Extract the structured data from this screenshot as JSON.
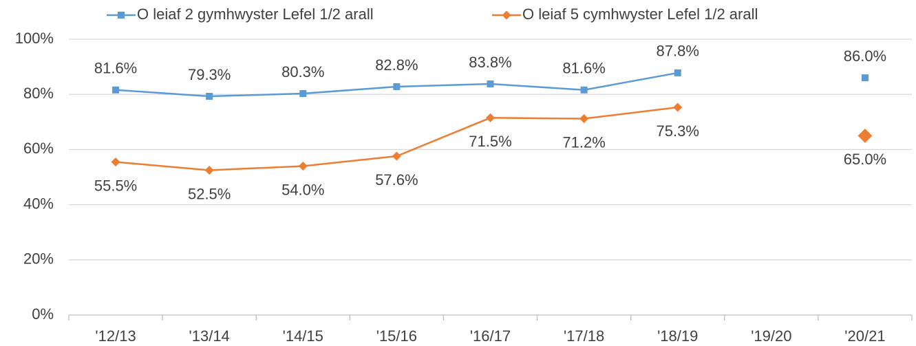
{
  "chart_data": {
    "type": "line",
    "categories": [
      "'12/13",
      "'13/14",
      "'14/15",
      "'15/16",
      "'16/17",
      "'17/18",
      "'18/19",
      "'19/20",
      "'20/21"
    ],
    "series": [
      {
        "name": "O leiaf 2 gymhwyster Lefel 1/2 arall",
        "color": "#5b9bd5",
        "marker": "square",
        "values": [
          81.6,
          79.3,
          80.3,
          82.8,
          83.8,
          81.6,
          87.8,
          null,
          86.0
        ],
        "value_labels": [
          "81.6%",
          "79.3%",
          "80.3%",
          "82.8%",
          "83.8%",
          "81.6%",
          "87.8%",
          null,
          "86.0%"
        ]
      },
      {
        "name": "O leiaf 5 cymhwyster Lefel 1/2 arall",
        "color": "#ed7d31",
        "marker": "diamond",
        "values": [
          55.5,
          52.5,
          54.0,
          57.6,
          71.5,
          71.2,
          75.3,
          null,
          65.0
        ],
        "value_labels": [
          "55.5%",
          "52.5%",
          "54.0%",
          "57.6%",
          "71.5%",
          "71.2%",
          "75.3%",
          null,
          "65.0%"
        ]
      }
    ],
    "ylim": [
      0,
      100
    ],
    "yticks": [
      {
        "value": 0,
        "label": "0%"
      },
      {
        "value": 20,
        "label": "20%"
      },
      {
        "value": 40,
        "label": "40%"
      },
      {
        "value": 60,
        "label": "60%"
      },
      {
        "value": 80,
        "label": "80%"
      },
      {
        "value": 100,
        "label": "100%"
      }
    ],
    "grid": true,
    "legend": "top"
  }
}
